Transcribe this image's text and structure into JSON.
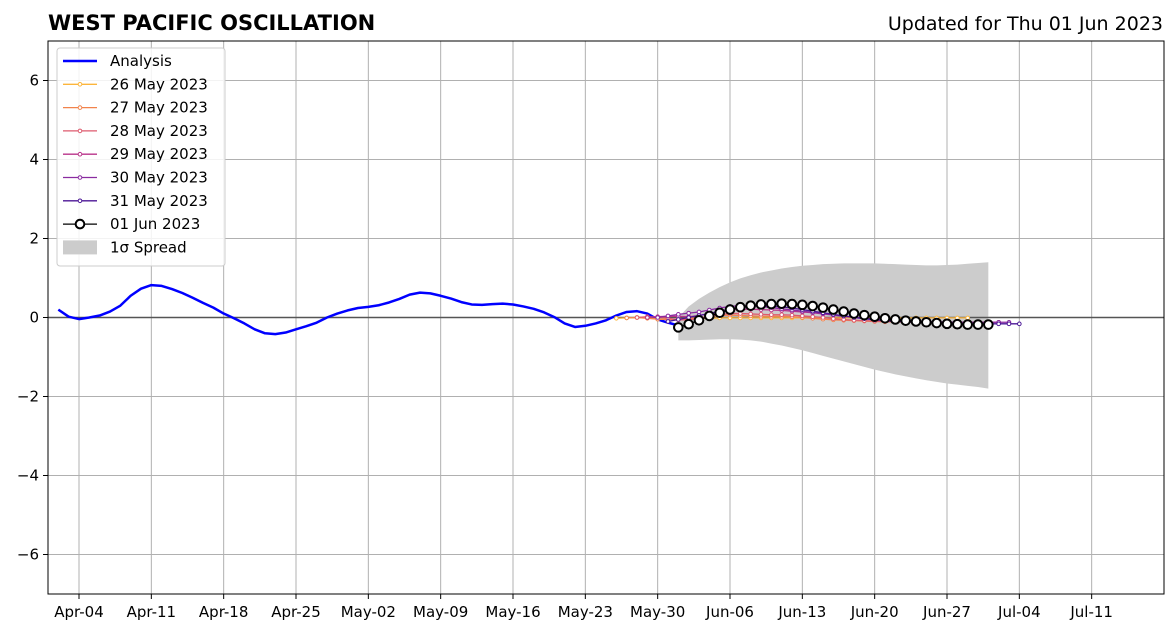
{
  "header": {
    "title": "WEST PACIFIC OSCILLATION",
    "updated": "Updated for Thu 01 Jun 2023"
  },
  "chart_data": {
    "type": "line",
    "title": "WEST PACIFIC OSCILLATION",
    "subtitle": "Updated for Thu 01 Jun 2023",
    "xlabel": "",
    "ylabel": "",
    "xlim": [
      "2023-04-01",
      "2023-07-18"
    ],
    "ylim": [
      -7,
      7
    ],
    "grid": true,
    "zero_line": true,
    "legend_position": "top-left",
    "x_tick_labels": [
      "Apr-04",
      "Apr-11",
      "Apr-18",
      "Apr-25",
      "May-02",
      "May-09",
      "May-16",
      "May-23",
      "May-30",
      "Jun-06",
      "Jun-13",
      "Jun-20",
      "Jun-27",
      "Jul-04",
      "Jul-11"
    ],
    "x_tick_dates": [
      "2023-04-04",
      "2023-04-11",
      "2023-04-18",
      "2023-04-25",
      "2023-05-02",
      "2023-05-09",
      "2023-05-16",
      "2023-05-23",
      "2023-05-30",
      "2023-06-06",
      "2023-06-13",
      "2023-06-20",
      "2023-06-27",
      "2023-07-04",
      "2023-07-11"
    ],
    "y_ticks": [
      -6,
      -4,
      -2,
      0,
      2,
      4,
      6
    ],
    "y_tick_labels": [
      "−6",
      "−4",
      "−2",
      "0",
      "2",
      "4",
      "6"
    ],
    "analysis": {
      "name": "Analysis",
      "color": "#0000ff",
      "start": "2023-04-02",
      "values": [
        0.2,
        0.02,
        -0.04,
        0.0,
        0.05,
        0.15,
        0.3,
        0.55,
        0.73,
        0.82,
        0.8,
        0.72,
        0.62,
        0.5,
        0.37,
        0.25,
        0.1,
        -0.02,
        -0.15,
        -0.3,
        -0.4,
        -0.42,
        -0.38,
        -0.3,
        -0.22,
        -0.13,
        0.0,
        0.1,
        0.18,
        0.24,
        0.27,
        0.31,
        0.38,
        0.47,
        0.58,
        0.63,
        0.61,
        0.55,
        0.48,
        0.39,
        0.33,
        0.32,
        0.34,
        0.35,
        0.33,
        0.28,
        0.22,
        0.13,
        0.01,
        -0.15,
        -0.24,
        -0.21,
        -0.15,
        -0.07,
        0.05,
        0.14,
        0.16,
        0.1,
        -0.05,
        -0.13,
        -0.2
      ]
    },
    "forecasts": [
      {
        "name": "26 May 2023",
        "color": "#fcb53b",
        "start": "2023-05-26",
        "values": [
          -0.02,
          -0.01,
          0.0,
          -0.01,
          -0.04,
          -0.05,
          -0.05,
          -0.04,
          -0.03,
          -0.02,
          -0.01,
          -0.01,
          -0.01,
          -0.01,
          -0.01,
          -0.01,
          -0.01,
          -0.01,
          -0.01,
          -0.01,
          -0.01,
          -0.01,
          -0.01,
          -0.01,
          -0.01,
          -0.01,
          -0.01,
          -0.01,
          -0.01,
          -0.01,
          -0.01,
          -0.01,
          -0.01,
          -0.01,
          -0.01
        ]
      },
      {
        "name": "27 May 2023",
        "color": "#f1834c",
        "start": "2023-05-27",
        "values": [
          -0.01,
          0.0,
          -0.02,
          -0.04,
          -0.05,
          -0.04,
          -0.02,
          -0.01,
          0.02,
          0.05,
          0.06,
          0.05,
          0.04,
          0.03,
          0.03,
          0.03,
          0.02,
          0.0,
          -0.02,
          -0.04,
          -0.06,
          -0.07,
          -0.08,
          -0.09,
          -0.1,
          -0.11,
          -0.11,
          -0.12,
          -0.12,
          -0.12,
          -0.12,
          -0.12,
          -0.12,
          -0.12,
          -0.12
        ]
      },
      {
        "name": "28 May 2023",
        "color": "#dd5a6e",
        "start": "2023-05-28",
        "values": [
          0.0,
          0.02,
          0.01,
          -0.02,
          -0.06,
          -0.06,
          -0.02,
          0.03,
          0.08,
          0.1,
          0.1,
          0.09,
          0.08,
          0.07,
          0.07,
          0.06,
          0.04,
          0.02,
          0.0,
          -0.03,
          -0.05,
          -0.07,
          -0.08,
          -0.09,
          -0.1,
          -0.1,
          -0.11,
          -0.11,
          -0.12,
          -0.12,
          -0.12,
          -0.12,
          -0.12,
          -0.12,
          -0.12
        ]
      },
      {
        "name": "29 May 2023",
        "color": "#b83289",
        "start": "2023-05-29",
        "values": [
          0.0,
          0.02,
          0.03,
          0.03,
          0.02,
          0.05,
          0.1,
          0.15,
          0.19,
          0.21,
          0.21,
          0.2,
          0.19,
          0.18,
          0.16,
          0.14,
          0.12,
          0.09,
          0.06,
          0.03,
          0.0,
          -0.02,
          -0.04,
          -0.06,
          -0.08,
          -0.09,
          -0.1,
          -0.11,
          -0.11,
          -0.12,
          -0.12,
          -0.12,
          -0.12,
          -0.12,
          -0.12
        ]
      },
      {
        "name": "30 May 2023",
        "color": "#8a2ba0",
        "start": "2023-05-30",
        "values": [
          0.0,
          0.04,
          0.08,
          0.11,
          0.14,
          0.19,
          0.24,
          0.28,
          0.3,
          0.3,
          0.28,
          0.25,
          0.22,
          0.19,
          0.16,
          0.13,
          0.1,
          0.07,
          0.04,
          0.01,
          -0.02,
          -0.04,
          -0.06,
          -0.08,
          -0.09,
          -0.1,
          -0.1,
          -0.11,
          -0.11,
          -0.12,
          -0.12,
          -0.12,
          -0.12,
          -0.12,
          -0.12
        ]
      },
      {
        "name": "31 May 2023",
        "color": "#4b1696",
        "start": "2023-05-31",
        "values": [
          -0.1,
          -0.05,
          0.0,
          0.05,
          0.1,
          0.16,
          0.21,
          0.25,
          0.28,
          0.3,
          0.29,
          0.27,
          0.24,
          0.2,
          0.16,
          0.12,
          0.08,
          0.04,
          0.0,
          -0.03,
          -0.06,
          -0.08,
          -0.1,
          -0.11,
          -0.12,
          -0.13,
          -0.14,
          -0.15,
          -0.15,
          -0.16,
          -0.16,
          -0.16,
          -0.16,
          -0.16,
          -0.16
        ]
      },
      {
        "name": "01 Jun 2023",
        "color": "#000000",
        "start": "2023-06-01",
        "values": [
          -0.25,
          -0.17,
          -0.07,
          0.04,
          0.12,
          0.2,
          0.26,
          0.3,
          0.33,
          0.34,
          0.35,
          0.34,
          0.32,
          0.29,
          0.25,
          0.2,
          0.15,
          0.1,
          0.06,
          0.02,
          -0.02,
          -0.05,
          -0.08,
          -0.1,
          -0.12,
          -0.14,
          -0.16,
          -0.17,
          -0.18,
          -0.18,
          -0.18
        ]
      }
    ],
    "spread": {
      "name": "1σ Spread",
      "color": "#cccccc",
      "start": "2023-06-01",
      "upper": [
        0.0,
        0.28,
        0.47,
        0.63,
        0.77,
        0.89,
        0.99,
        1.07,
        1.14,
        1.19,
        1.24,
        1.28,
        1.31,
        1.33,
        1.35,
        1.36,
        1.37,
        1.37,
        1.37,
        1.37,
        1.36,
        1.35,
        1.34,
        1.33,
        1.32,
        1.32,
        1.33,
        1.34,
        1.36,
        1.38,
        1.4
      ],
      "lower": [
        -0.58,
        -0.58,
        -0.57,
        -0.56,
        -0.55,
        -0.55,
        -0.56,
        -0.58,
        -0.61,
        -0.66,
        -0.71,
        -0.77,
        -0.83,
        -0.9,
        -0.97,
        -1.04,
        -1.11,
        -1.18,
        -1.25,
        -1.32,
        -1.38,
        -1.44,
        -1.49,
        -1.54,
        -1.59,
        -1.63,
        -1.67,
        -1.7,
        -1.73,
        -1.76,
        -1.8
      ]
    },
    "legend": [
      {
        "label": "Analysis",
        "kind": "analysis"
      },
      {
        "label": "26 May 2023",
        "kind": "forecast"
      },
      {
        "label": "27 May 2023",
        "kind": "forecast"
      },
      {
        "label": "28 May 2023",
        "kind": "forecast"
      },
      {
        "label": "29 May 2023",
        "kind": "forecast"
      },
      {
        "label": "30 May 2023",
        "kind": "forecast"
      },
      {
        "label": "31 May 2023",
        "kind": "forecast"
      },
      {
        "label": "01 Jun 2023",
        "kind": "latest"
      },
      {
        "label": "1σ Spread",
        "kind": "spread"
      }
    ]
  }
}
